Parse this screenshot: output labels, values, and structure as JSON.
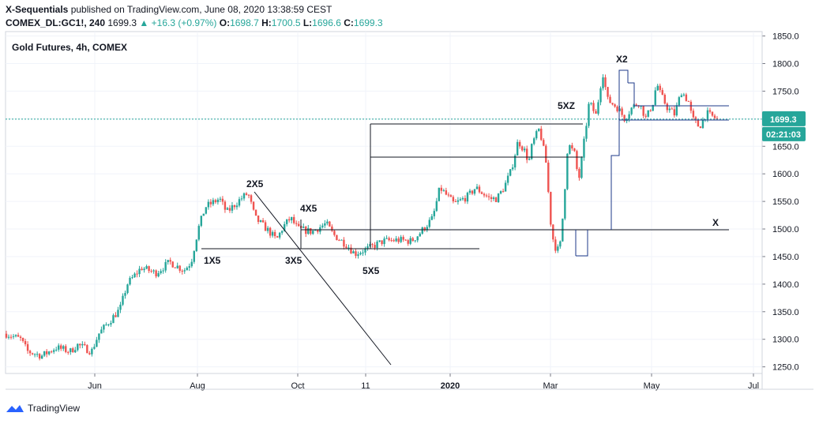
{
  "header": {
    "publisher": "X-Sequentials",
    "published_text": "published on TradingView.com, June 08, 2020 13:38:59 CEST",
    "symbol": "COMEX_DL:GC1!, 240",
    "last": "1699.3",
    "change": "+16.3 (+0.97%)",
    "o_label": "O:",
    "o": "1698.7",
    "h_label": "H:",
    "h": "1700.5",
    "l_label": "L:",
    "l": "1696.6",
    "c_label": "C:",
    "c": "1699.3"
  },
  "chart_data": {
    "type": "candlestick",
    "title": "Gold Futures, 4h, COMEX",
    "y_ticks": [
      "1850.0",
      "1800.0",
      "1750.0",
      "1700.0",
      "1650.0",
      "1600.0",
      "1550.0",
      "1500.0",
      "1450.0",
      "1400.0",
      "1350.0",
      "1300.0",
      "1250.0"
    ],
    "y_tick_values": [
      1850,
      1800,
      1750,
      1700,
      1650,
      1600,
      1550,
      1500,
      1450,
      1400,
      1350,
      1300,
      1250
    ],
    "ylim": [
      1238,
      1858
    ],
    "x_ticks": [
      "Jun",
      "Aug",
      "Oct",
      "11",
      "2020",
      "Mar",
      "May",
      "Jul"
    ],
    "price_label": "1699.3",
    "countdown_label": "02:21:03",
    "series_path": [
      [
        0,
        1310
      ],
      [
        0.02,
        1300
      ],
      [
        0.03,
        1278
      ],
      [
        0.05,
        1270
      ],
      [
        0.07,
        1285
      ],
      [
        0.09,
        1278
      ],
      [
        0.1,
        1290
      ],
      [
        0.12,
        1278
      ],
      [
        0.13,
        1310
      ],
      [
        0.15,
        1340
      ],
      [
        0.16,
        1355
      ],
      [
        0.17,
        1400
      ],
      [
        0.19,
        1430
      ],
      [
        0.21,
        1420
      ],
      [
        0.23,
        1440
      ],
      [
        0.25,
        1425
      ],
      [
        0.26,
        1440
      ],
      [
        0.27,
        1500
      ],
      [
        0.28,
        1540
      ],
      [
        0.3,
        1555
      ],
      [
        0.31,
        1530
      ],
      [
        0.33,
        1555
      ],
      [
        0.34,
        1565
      ],
      [
        0.35,
        1520
      ],
      [
        0.37,
        1495
      ],
      [
        0.38,
        1480
      ],
      [
        0.39,
        1505
      ],
      [
        0.4,
        1520
      ],
      [
        0.41,
        1500
      ],
      [
        0.43,
        1495
      ],
      [
        0.45,
        1510
      ],
      [
        0.46,
        1490
      ],
      [
        0.48,
        1470
      ],
      [
        0.49,
        1455
      ],
      [
        0.51,
        1465
      ],
      [
        0.53,
        1478
      ],
      [
        0.55,
        1480
      ],
      [
        0.57,
        1478
      ],
      [
        0.58,
        1490
      ],
      [
        0.6,
        1520
      ],
      [
        0.61,
        1575
      ],
      [
        0.62,
        1560
      ],
      [
        0.63,
        1545
      ],
      [
        0.65,
        1560
      ],
      [
        0.66,
        1575
      ],
      [
        0.68,
        1555
      ],
      [
        0.69,
        1555
      ],
      [
        0.7,
        1575
      ],
      [
        0.71,
        1605
      ],
      [
        0.72,
        1660
      ],
      [
        0.73,
        1640
      ],
      [
        0.735,
        1620
      ],
      [
        0.74,
        1655
      ],
      [
        0.75,
        1682
      ],
      [
        0.755,
        1650
      ],
      [
        0.76,
        1615
      ],
      [
        0.765,
        1520
      ],
      [
        0.77,
        1475
      ],
      [
        0.775,
        1460
      ],
      [
        0.78,
        1475
      ],
      [
        0.785,
        1560
      ],
      [
        0.79,
        1655
      ],
      [
        0.8,
        1635
      ],
      [
        0.805,
        1585
      ],
      [
        0.81,
        1630
      ],
      [
        0.815,
        1680
      ],
      [
        0.82,
        1730
      ],
      [
        0.83,
        1705
      ],
      [
        0.835,
        1755
      ],
      [
        0.84,
        1785
      ],
      [
        0.845,
        1735
      ],
      [
        0.85,
        1730
      ],
      [
        0.86,
        1720
      ],
      [
        0.87,
        1700
      ],
      [
        0.88,
        1720
      ],
      [
        0.89,
        1730
      ],
      [
        0.9,
        1700
      ],
      [
        0.91,
        1730
      ],
      [
        0.915,
        1765
      ],
      [
        0.92,
        1745
      ],
      [
        0.93,
        1720
      ],
      [
        0.94,
        1708
      ],
      [
        0.95,
        1750
      ],
      [
        0.96,
        1730
      ],
      [
        0.965,
        1700
      ],
      [
        0.975,
        1685
      ],
      [
        0.985,
        1710
      ],
      [
        1,
        1699
      ]
    ],
    "annotations": [
      "2X5",
      "4X5",
      "1X5",
      "3X5",
      "5X5",
      "5XZ",
      "X2",
      "X"
    ]
  },
  "footer": {
    "brand": "TradingView"
  },
  "colors": {
    "up": "#26a69a",
    "down": "#ef5350",
    "line": "#131722",
    "box": "#1e3a8a",
    "price_tag": "#26a69a"
  }
}
